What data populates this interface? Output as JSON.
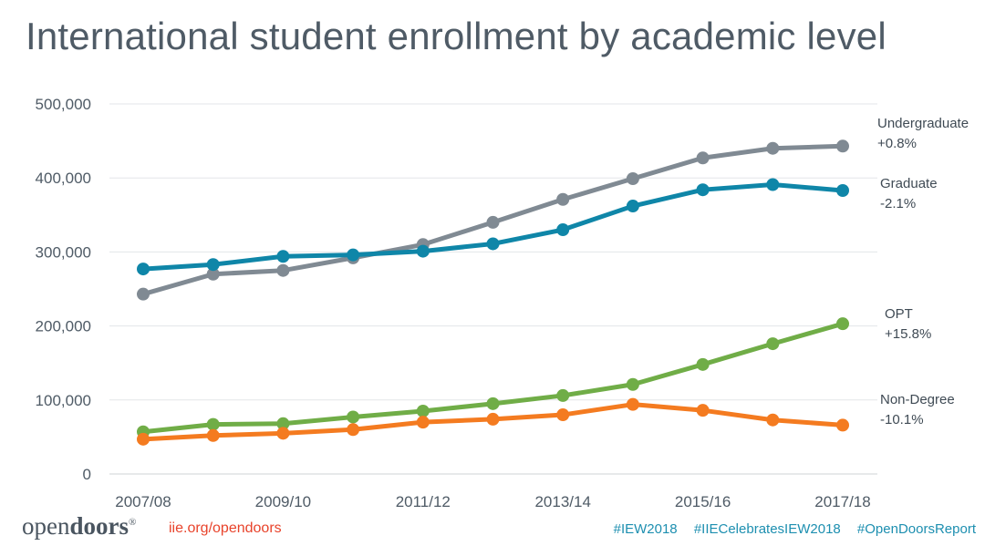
{
  "page": {
    "title": "International student enrollment by academic level"
  },
  "footer": {
    "logo_light": "open",
    "logo_bold": "doors",
    "logo_mark": "®",
    "url": "iie.org/opendoors",
    "hashtags": [
      "#IEW2018",
      "#IIECelebratesIEW2018",
      "#OpenDoorsReport"
    ]
  },
  "chart_data": {
    "type": "line",
    "title": "International student enrollment by academic level",
    "xlabel": "",
    "ylabel": "",
    "ylim": [
      0,
      500000
    ],
    "yticks": [
      0,
      100000,
      200000,
      300000,
      400000,
      500000
    ],
    "ytick_labels": [
      "0",
      "100,000",
      "200,000",
      "300,000",
      "400,000",
      "500,000"
    ],
    "x": [
      "2007/08",
      "2008/09",
      "2009/10",
      "2010/11",
      "2011/12",
      "2012/13",
      "2013/14",
      "2014/15",
      "2015/16",
      "2016/17",
      "2017/18"
    ],
    "xtick_labels": [
      "2007/08",
      "2009/10",
      "2011/12",
      "2013/14",
      "2015/16",
      "2017/18"
    ],
    "grid": true,
    "series": [
      {
        "name": "Undergraduate",
        "change": "+0.8%",
        "color": "#808a93",
        "values": [
          243000,
          270000,
          275000,
          292000,
          310000,
          340000,
          371000,
          399000,
          427000,
          440000,
          443000
        ]
      },
      {
        "name": "Graduate",
        "change": "-2.1%",
        "color": "#0f86a8",
        "values": [
          277000,
          283000,
          294000,
          296000,
          301000,
          311000,
          330000,
          362000,
          384000,
          391000,
          383000
        ]
      },
      {
        "name": "OPT",
        "change": "+15.8%",
        "color": "#70ad47",
        "values": [
          57000,
          67000,
          68000,
          77000,
          85000,
          95000,
          106000,
          121000,
          148000,
          176000,
          203000
        ]
      },
      {
        "name": "Non-Degree",
        "change": "-10.1%",
        "color": "#f47b20",
        "values": [
          47000,
          52000,
          55000,
          60000,
          70000,
          74000,
          80000,
          94000,
          86000,
          73000,
          66000
        ]
      }
    ]
  }
}
